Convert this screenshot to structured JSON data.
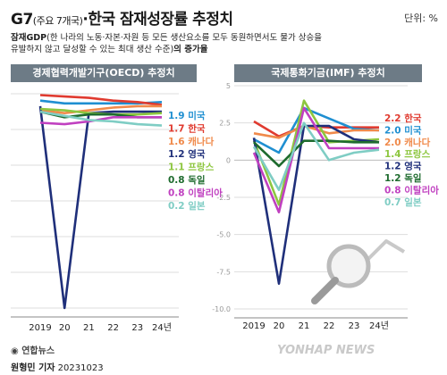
{
  "header": {
    "title_main": "G7",
    "title_small": "(주요 7개국)",
    "title_rest": "·한국 잠재성장률 추정치",
    "unit": "단위: %",
    "desc_bold1": "잠재GDP",
    "desc_text": "(한 나라의 노동·자본·자원 등 모든 생산요소를 모두 동원하면서도 물가 상승을 유발하지 않고 달성할 수 있는 최대 생산 수준)",
    "desc_bold2": "의 증가율"
  },
  "footer": {
    "logo": "연합뉴스",
    "author": "원형민 기자",
    "date": "20231023",
    "watermark": "YONHAP NEWS"
  },
  "colors": {
    "미국": "#1f8fd1",
    "한국": "#e03a2f",
    "캐나다": "#f08a4b",
    "영국": "#1f2f7a",
    "프랑스": "#8dc63f",
    "독일": "#1e6b2e",
    "이탈리아": "#c040c0",
    "일본": "#7fcdc4"
  },
  "chart_data": [
    {
      "type": "line",
      "title": "경제협력개발기구(OECD) 추정치",
      "x": [
        "2019",
        "20",
        "21",
        "22",
        "23",
        "24년"
      ],
      "ylim": [
        -13,
        2.5
      ],
      "series": [
        {
          "name": "미국",
          "values": [
            2.0,
            1.8,
            1.8,
            1.8,
            1.8,
            1.9
          ],
          "label": "1.9 미국"
        },
        {
          "name": "한국",
          "values": [
            2.4,
            2.3,
            2.2,
            2.0,
            1.9,
            1.7
          ],
          "label": "1.7 한국"
        },
        {
          "name": "캐나다",
          "values": [
            1.3,
            1.1,
            1.3,
            1.5,
            1.6,
            1.6
          ],
          "label": "1.6 캐나다"
        },
        {
          "name": "영국",
          "values": [
            1.6,
            -13.0,
            1.1,
            1.2,
            1.2,
            1.2
          ],
          "label": "1.2 영국"
        },
        {
          "name": "프랑스",
          "values": [
            1.4,
            1.3,
            1.1,
            1.0,
            1.0,
            1.1
          ],
          "label": "1.1 프랑스"
        },
        {
          "name": "독일",
          "values": [
            1.2,
            0.8,
            1.0,
            1.0,
            0.8,
            0.8
          ],
          "label": "0.8 독일"
        },
        {
          "name": "이탈리아",
          "values": [
            0.4,
            0.3,
            0.5,
            0.8,
            0.8,
            0.8
          ],
          "label": "0.8 이탈리아"
        },
        {
          "name": "일본",
          "values": [
            1.2,
            0.9,
            0.6,
            0.5,
            0.3,
            0.2
          ],
          "label": "0.2 일본"
        }
      ]
    },
    {
      "type": "line",
      "title": "국제통화기금(IMF) 추정치",
      "x": [
        "2019",
        "20",
        "21",
        "22",
        "23",
        "24년"
      ],
      "ylim": [
        -10,
        5
      ],
      "yticks": [
        "5",
        "2.5",
        "0",
        "-2.5",
        "-5.0",
        "-7.5",
        "-10.0"
      ],
      "series": [
        {
          "name": "한국",
          "values": [
            2.6,
            1.6,
            2.3,
            2.2,
            2.2,
            2.2
          ],
          "label": "2.2 한국"
        },
        {
          "name": "미국",
          "values": [
            1.4,
            0.5,
            3.5,
            2.8,
            2.1,
            2.0
          ],
          "label": "2.0 미국"
        },
        {
          "name": "캐나다",
          "values": [
            1.8,
            1.5,
            2.3,
            1.8,
            2.0,
            2.0
          ],
          "label": "2.0 캐나다"
        },
        {
          "name": "프랑스",
          "values": [
            1.3,
            -3.0,
            4.0,
            1.2,
            1.3,
            1.4
          ],
          "label": "1.4 프랑스"
        },
        {
          "name": "영국",
          "values": [
            1.5,
            -8.3,
            2.3,
            2.3,
            1.4,
            1.2
          ],
          "label": "1.2 영국"
        },
        {
          "name": "독일",
          "values": [
            1.2,
            -0.4,
            1.3,
            1.3,
            1.2,
            1.2
          ],
          "label": "1.2 독일"
        },
        {
          "name": "이탈리아",
          "values": [
            0.5,
            -3.5,
            3.5,
            0.8,
            0.8,
            0.8
          ],
          "label": "0.8 이탈리아"
        },
        {
          "name": "일본",
          "values": [
            0.9,
            -2.0,
            2.5,
            0.0,
            0.5,
            0.7
          ],
          "label": "0.7 일본"
        }
      ]
    }
  ]
}
